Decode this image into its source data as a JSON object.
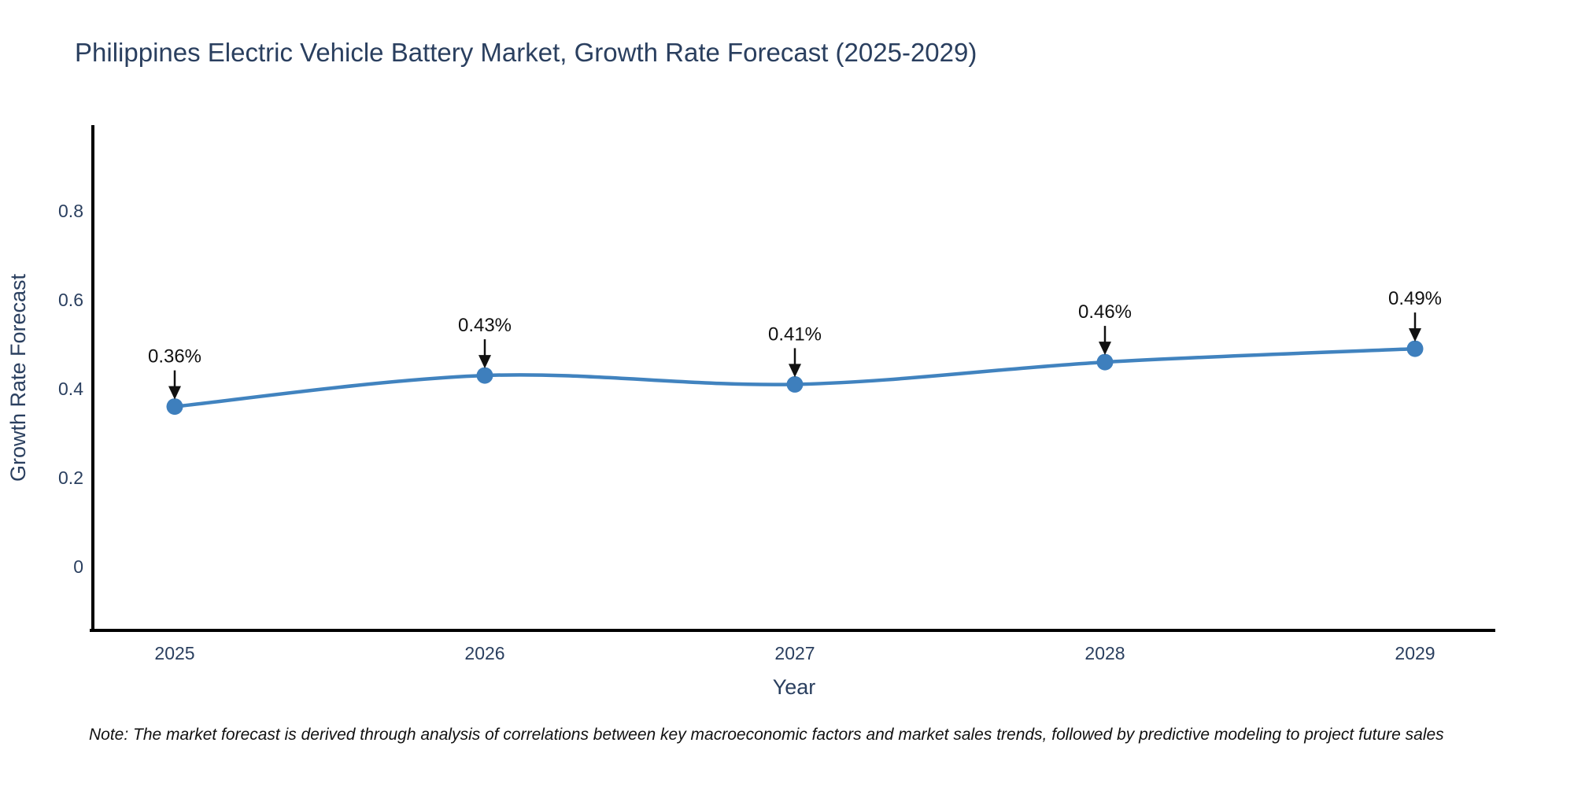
{
  "note": "Note: The market forecast is derived through analysis of correlations between key macroeconomic factors and market sales trends, followed by predictive modeling to project future sales",
  "chart_data": {
    "type": "line",
    "title": "Philippines Electric Vehicle Battery Market, Growth Rate Forecast (2025-2029)",
    "xlabel": "Year",
    "ylabel": "Growth Rate Forecast",
    "x": [
      2025,
      2026,
      2027,
      2028,
      2029
    ],
    "values": [
      0.36,
      0.43,
      0.41,
      0.46,
      0.49
    ],
    "point_labels": [
      "0.36%",
      "0.43%",
      "0.41%",
      "0.46%",
      "0.49%"
    ],
    "yticks": [
      0,
      0.2,
      0.4,
      0.6,
      0.8
    ],
    "ylim": [
      -0.15,
      1.0
    ],
    "line_shape": "spline",
    "grid": false,
    "legend": "none",
    "colors": {
      "line": "#4183bf",
      "marker": "#3e7fbd",
      "annotation": "#111111",
      "axis_text": "#2a3f5f",
      "axis_line": "#000000",
      "background": "#ffffff"
    }
  }
}
